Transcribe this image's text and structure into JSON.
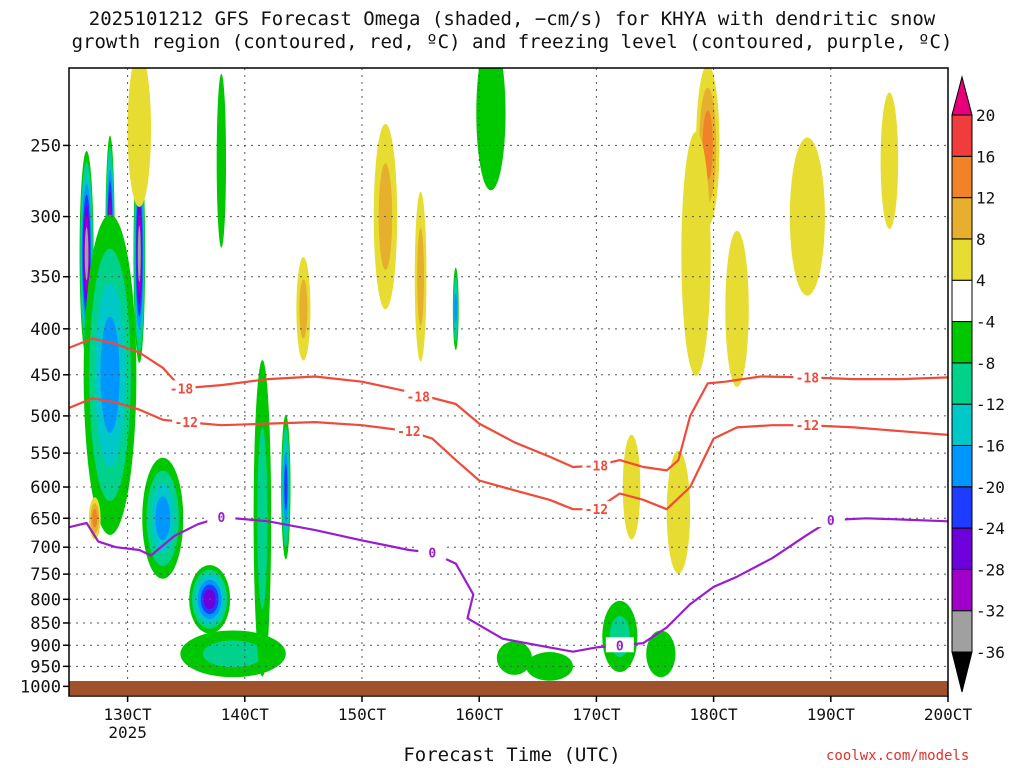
{
  "title_line1": "2025101212 GFS Forecast Omega (shaded, −cm/s) for KHYA with dendritic snow",
  "title_line2": "growth region (contoured, red, ºC) and freezing level (contoured, purple, ºC)",
  "x_axis_title": "Forecast Time (UTC)",
  "credit": "coolwx.com/models",
  "colors": {
    "ground": "#a0522d",
    "dgz_contour": "#f04a3a",
    "freezing_contour": "#9a1cd0",
    "grid": "#555555"
  },
  "chart_data": {
    "type": "heatmap",
    "y_scale": "log-pressure",
    "y_unit": "hPa",
    "ylim": [
      1025,
      205
    ],
    "y_ticks": [
      250,
      300,
      350,
      400,
      450,
      500,
      550,
      600,
      650,
      700,
      750,
      800,
      850,
      900,
      950,
      1000
    ],
    "x_unit": "day/hour (UTC), 2025-10",
    "xlim": [
      12.5,
      20
    ],
    "x_ticks": [
      {
        "day": 13,
        "label": "130CT",
        "sub": "2025"
      },
      {
        "day": 14,
        "label": "140CT",
        "sub": ""
      },
      {
        "day": 15,
        "label": "150CT",
        "sub": ""
      },
      {
        "day": 16,
        "label": "160CT",
        "sub": ""
      },
      {
        "day": 17,
        "label": "170CT",
        "sub": ""
      },
      {
        "day": 18,
        "label": "180CT",
        "sub": ""
      },
      {
        "day": 19,
        "label": "190CT",
        "sub": ""
      },
      {
        "day": 20,
        "label": "200CT",
        "sub": ""
      }
    ],
    "grid": true,
    "colorbar": {
      "placement": "right",
      "levels": [
        -40,
        -36,
        -32,
        -28,
        -24,
        -20,
        -16,
        -12,
        -8,
        -4,
        4,
        8,
        12,
        16,
        20,
        24
      ],
      "labels": [
        -36,
        -32,
        -28,
        -24,
        -20,
        -16,
        -12,
        -8,
        -4,
        4,
        8,
        12,
        16,
        20
      ],
      "colors": [
        "#000000",
        "#a0a0a0",
        "#a000c8",
        "#6e00dc",
        "#1e3cff",
        "#0096ff",
        "#00c8c8",
        "#00d28c",
        "#00c800",
        "#ffffff",
        "#e6dc32",
        "#e6af2d",
        "#f08228",
        "#f03c3c",
        "#e6007a"
      ]
    },
    "blobs": [
      {
        "x": 12.65,
        "p": 330,
        "w": 0.12,
        "h": 170,
        "v": -36
      },
      {
        "x": 12.85,
        "p": 320,
        "w": 0.08,
        "h": 170,
        "v": -36
      },
      {
        "x": 13.1,
        "p": 330,
        "w": 0.1,
        "h": 180,
        "v": -36
      },
      {
        "x": 12.85,
        "p": 450,
        "w": 0.45,
        "h": 350,
        "v": -20
      },
      {
        "x": 13.3,
        "p": 650,
        "w": 0.35,
        "h": 200,
        "v": -18
      },
      {
        "x": 13.7,
        "p": 800,
        "w": 0.35,
        "h": 140,
        "v": -26
      },
      {
        "x": 13.9,
        "p": 920,
        "w": 0.9,
        "h": 110,
        "v": -12
      },
      {
        "x": 14.35,
        "p": 600,
        "w": 0.08,
        "h": 220,
        "v": -24
      },
      {
        "x": 14.15,
        "p": 650,
        "w": 0.15,
        "h": 500,
        "v": -10
      },
      {
        "x": 12.72,
        "p": 650,
        "w": 0.1,
        "h": 70,
        "v": 14
      },
      {
        "x": 13.1,
        "p": 240,
        "w": 0.2,
        "h": 130,
        "v": 8
      },
      {
        "x": 13.8,
        "p": 260,
        "w": 0.08,
        "h": 120,
        "v": -6
      },
      {
        "x": 15.2,
        "p": 300,
        "w": 0.2,
        "h": 140,
        "v": 10
      },
      {
        "x": 15.5,
        "p": 350,
        "w": 0.1,
        "h": 150,
        "v": 10
      },
      {
        "x": 14.5,
        "p": 380,
        "w": 0.12,
        "h": 100,
        "v": 10
      },
      {
        "x": 15.8,
        "p": 380,
        "w": 0.05,
        "h": 80,
        "v": -20
      },
      {
        "x": 16.1,
        "p": 230,
        "w": 0.25,
        "h": 150,
        "v": -6
      },
      {
        "x": 16.3,
        "p": 930,
        "w": 0.3,
        "h": 80,
        "v": -8
      },
      {
        "x": 16.6,
        "p": 950,
        "w": 0.4,
        "h": 70,
        "v": -6
      },
      {
        "x": 17.2,
        "p": 880,
        "w": 0.3,
        "h": 160,
        "v": -10
      },
      {
        "x": 17.55,
        "p": 920,
        "w": 0.25,
        "h": 110,
        "v": -8
      },
      {
        "x": 17.3,
        "p": 600,
        "w": 0.15,
        "h": 160,
        "v": 6
      },
      {
        "x": 17.7,
        "p": 640,
        "w": 0.2,
        "h": 200,
        "v": 6
      },
      {
        "x": 17.95,
        "p": 250,
        "w": 0.2,
        "h": 120,
        "v": 14
      },
      {
        "x": 17.85,
        "p": 330,
        "w": 0.25,
        "h": 200,
        "v": 8
      },
      {
        "x": 18.2,
        "p": 380,
        "w": 0.2,
        "h": 150,
        "v": 6
      },
      {
        "x": 18.8,
        "p": 300,
        "w": 0.3,
        "h": 120,
        "v": 6
      },
      {
        "x": 19.5,
        "p": 260,
        "w": 0.15,
        "h": 90,
        "v": 6
      }
    ],
    "dgz_contours": [
      {
        "label": "-18",
        "label_at": [
          [
            13.46,
            466
          ],
          [
            15.48,
            476
          ],
          [
            17.0,
            568
          ],
          [
            18.8,
            453
          ]
        ],
        "points": [
          [
            12.5,
            420
          ],
          [
            12.7,
            410
          ],
          [
            12.9,
            416
          ],
          [
            13.1,
            425
          ],
          [
            13.3,
            442
          ],
          [
            13.46,
            466
          ],
          [
            13.8,
            462
          ],
          [
            14.2,
            455
          ],
          [
            14.6,
            452
          ],
          [
            15.0,
            458
          ],
          [
            15.4,
            470
          ],
          [
            15.8,
            485
          ],
          [
            16.0,
            510
          ],
          [
            16.3,
            535
          ],
          [
            16.6,
            555
          ],
          [
            16.8,
            570
          ],
          [
            17.0,
            568
          ],
          [
            17.2,
            560
          ],
          [
            17.4,
            570
          ],
          [
            17.6,
            575
          ],
          [
            17.7,
            560
          ],
          [
            17.8,
            500
          ],
          [
            17.95,
            460
          ],
          [
            18.1,
            458
          ],
          [
            18.4,
            452
          ],
          [
            18.8,
            453
          ],
          [
            19.2,
            455
          ],
          [
            19.6,
            455
          ],
          [
            20.0,
            453
          ]
        ]
      },
      {
        "label": "-12",
        "label_at": [
          [
            13.5,
            508
          ],
          [
            15.4,
            520
          ],
          [
            17.0,
            635
          ],
          [
            18.8,
            512
          ]
        ],
        "points": [
          [
            12.5,
            490
          ],
          [
            12.7,
            478
          ],
          [
            12.9,
            483
          ],
          [
            13.1,
            492
          ],
          [
            13.3,
            505
          ],
          [
            13.5,
            508
          ],
          [
            13.8,
            512
          ],
          [
            14.2,
            510
          ],
          [
            14.6,
            508
          ],
          [
            15.0,
            512
          ],
          [
            15.4,
            520
          ],
          [
            15.6,
            530
          ],
          [
            15.8,
            560
          ],
          [
            16.0,
            590
          ],
          [
            16.3,
            605
          ],
          [
            16.6,
            620
          ],
          [
            16.8,
            635
          ],
          [
            17.0,
            635
          ],
          [
            17.2,
            610
          ],
          [
            17.4,
            620
          ],
          [
            17.6,
            635
          ],
          [
            17.8,
            600
          ],
          [
            18.0,
            530
          ],
          [
            18.2,
            515
          ],
          [
            18.5,
            512
          ],
          [
            18.8,
            512
          ],
          [
            19.2,
            515
          ],
          [
            19.6,
            520
          ],
          [
            20.0,
            525
          ]
        ]
      }
    ],
    "freezing_contour": {
      "label": "0",
      "label_at": [
        [
          13.8,
          648
        ],
        [
          15.6,
          710
        ],
        [
          17.2,
          900
        ],
        [
          19.0,
          653
        ]
      ],
      "points": [
        [
          12.5,
          665
        ],
        [
          12.65,
          658
        ],
        [
          12.75,
          690
        ],
        [
          12.9,
          700
        ],
        [
          13.1,
          705
        ],
        [
          13.2,
          715
        ],
        [
          13.4,
          680
        ],
        [
          13.6,
          660
        ],
        [
          13.8,
          648
        ],
        [
          14.2,
          655
        ],
        [
          14.6,
          670
        ],
        [
          15.0,
          688
        ],
        [
          15.4,
          705
        ],
        [
          15.6,
          710
        ],
        [
          15.8,
          730
        ],
        [
          15.95,
          790
        ],
        [
          15.9,
          840
        ],
        [
          16.2,
          885
        ],
        [
          16.6,
          905
        ],
        [
          16.8,
          915
        ],
        [
          17.0,
          905
        ],
        [
          17.2,
          900
        ],
        [
          17.4,
          895
        ],
        [
          17.6,
          860
        ],
        [
          17.8,
          810
        ],
        [
          18.0,
          775
        ],
        [
          18.2,
          755
        ],
        [
          18.5,
          720
        ],
        [
          18.8,
          678
        ],
        [
          19.0,
          653
        ],
        [
          19.3,
          650
        ],
        [
          19.6,
          652
        ],
        [
          20.0,
          655
        ]
      ]
    }
  }
}
